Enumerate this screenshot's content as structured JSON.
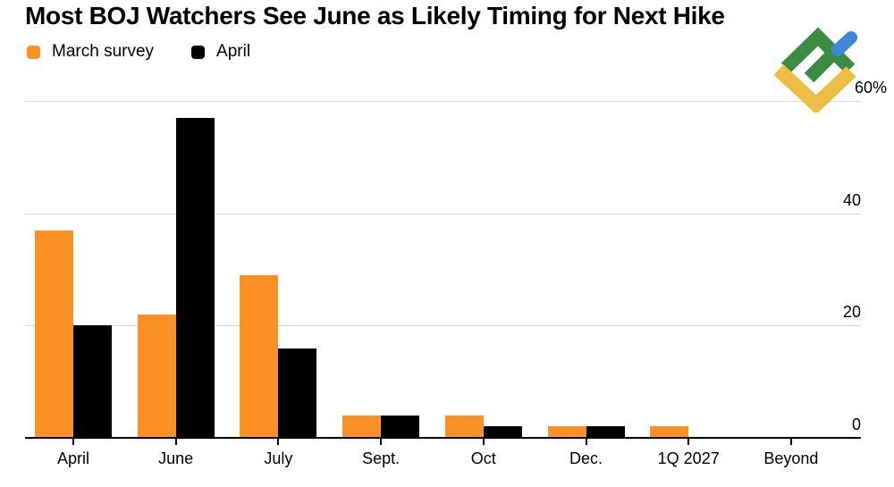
{
  "title": "Most BOJ Watchers See June as Likely Timing for Next Hike",
  "legend": {
    "items": [
      {
        "label": "March survey",
        "color": "#FB9124"
      },
      {
        "label": "April",
        "color": "#000000"
      }
    ]
  },
  "chart_data": {
    "type": "bar",
    "title": "Most BOJ Watchers See June as Likely Timing for Next Hike",
    "categories": [
      "April",
      "June",
      "July",
      "Sept.",
      "Oct",
      "Dec.",
      "1Q 2027",
      "Beyond"
    ],
    "series": [
      {
        "name": "March survey",
        "color": "#FB9124",
        "values": [
          37,
          22,
          29,
          4,
          4,
          2,
          2,
          0
        ]
      },
      {
        "name": "April",
        "color": "#000000",
        "values": [
          20,
          57,
          16,
          4,
          2,
          2,
          0,
          0
        ]
      }
    ],
    "xlabel": "",
    "ylabel": "",
    "unit": "%",
    "ylim": [
      0,
      60
    ],
    "yticks": [
      {
        "value": 0,
        "label": "0"
      },
      {
        "value": 20,
        "label": "20"
      },
      {
        "value": 40,
        "label": "40"
      },
      {
        "value": 60,
        "label": "60%"
      }
    ],
    "grid": true,
    "legend_position": "top-left"
  },
  "colors": {
    "background": "#ffffff",
    "gridline": "#d8d8d8",
    "axis": "#000000",
    "text": "#000000"
  },
  "watermark": {
    "name": "LiteFinance logo",
    "green": "#3B8C43",
    "yellow": "#EDBE45",
    "blue": "#4087D7"
  }
}
